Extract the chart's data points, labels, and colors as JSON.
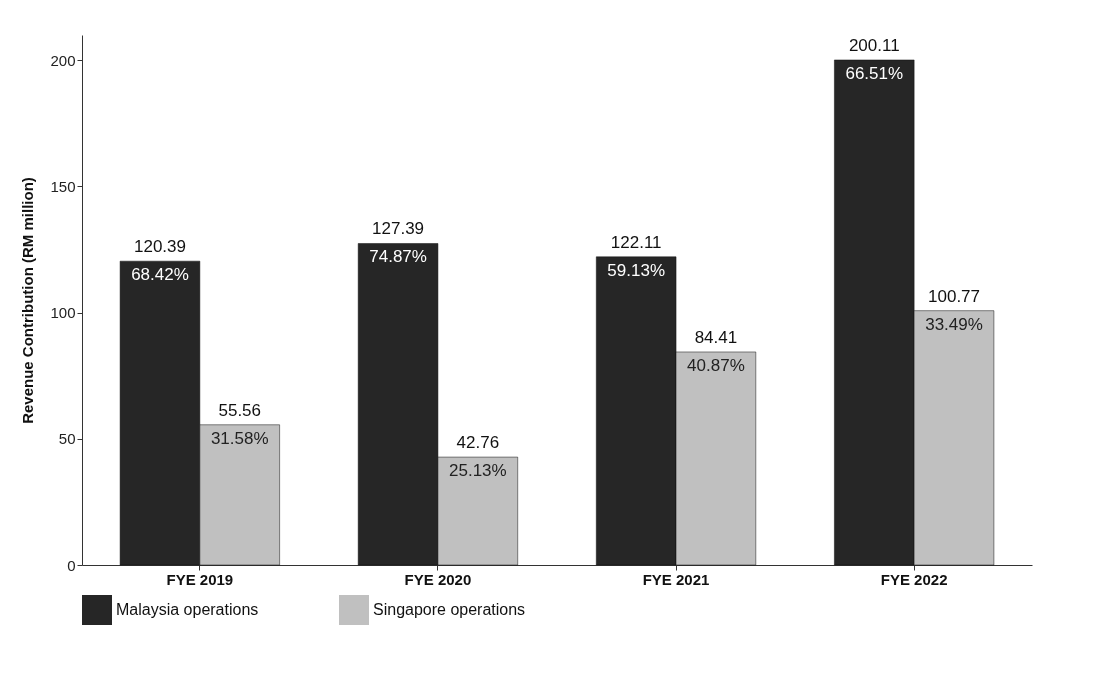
{
  "chart_data": {
    "type": "bar",
    "ylabel": "Revenue Contribution (RM million)",
    "categories": [
      "FYE 2019",
      "FYE 2020",
      "FYE 2021",
      "FYE 2022"
    ],
    "series": [
      {
        "name": "Malaysia operations",
        "color": "#262626",
        "values": [
          120.39,
          127.39,
          122.11,
          200.11
        ]
      },
      {
        "name": "Singapore operations",
        "color": "#c0c0c0",
        "values": [
          55.56,
          42.76,
          84.41,
          100.77
        ]
      }
    ],
    "ylim": [
      0,
      210
    ],
    "yticks": [
      0,
      50,
      100,
      150,
      200
    ],
    "grid": false,
    "legend": "bottom",
    "data_labels": true,
    "annotations": [
      {
        "text": "68.42%",
        "x": "FYE 2019",
        "y": 120.39
      },
      {
        "text": "74.87%",
        "x": "FYE 2020",
        "y": 127.39
      },
      {
        "text": "59.13%",
        "x": "FYE 2021",
        "y": 122.11
      },
      {
        "text": "66.51%",
        "x": "FYE 2022",
        "y": 200.11
      },
      {
        "text": "31.58%",
        "x": "FYE 2019",
        "y": 55.56
      },
      {
        "text": "25.13%",
        "x": "FYE 2020",
        "y": 42.76
      },
      {
        "text": "40.87%",
        "x": "FYE 2021",
        "y": 84.41
      },
      {
        "text": "33.49%",
        "x": "FYE 2022",
        "y": 100.77
      }
    ]
  }
}
